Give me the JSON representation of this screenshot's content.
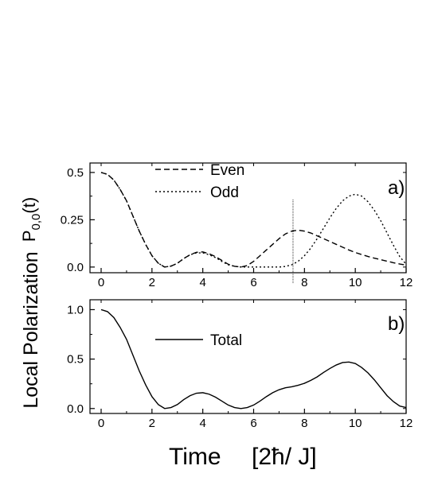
{
  "chart_data": [
    {
      "panel": "a",
      "type": "line",
      "panel_label": "a)",
      "ylabel_main": "P",
      "ylabel_sub": "0,0",
      "ylabel_arg": "(t)",
      "xlim": [
        0,
        12
      ],
      "ylim": [
        -0.03,
        0.55
      ],
      "x_ticks": [
        0,
        2,
        4,
        6,
        8,
        10,
        12
      ],
      "x_tick_labels": [
        "0",
        "2",
        "4",
        "6",
        "8",
        "10",
        "12"
      ],
      "y_ticks": [
        0.0,
        0.25,
        0.5
      ],
      "y_tick_labels": [
        "0.0",
        "0.25",
        "0.5"
      ],
      "marker_line_x": 7.55,
      "legend": "top-left",
      "series": [
        {
          "name": "Even",
          "style": "dashed",
          "x": [
            0,
            0.25,
            0.5,
            0.75,
            1,
            1.25,
            1.5,
            1.75,
            2,
            2.25,
            2.5,
            2.75,
            3,
            3.25,
            3.5,
            3.75,
            4,
            4.25,
            4.5,
            4.75,
            5,
            5.25,
            5.5,
            5.75,
            6,
            6.25,
            6.5,
            6.75,
            7,
            7.25,
            7.5,
            7.75,
            8,
            8.25,
            8.5,
            8.75,
            9,
            9.25,
            9.5,
            9.75,
            10,
            10.25,
            10.5,
            10.75,
            11,
            11.25,
            11.5,
            11.75,
            12
          ],
          "y": [
            0.5,
            0.49,
            0.46,
            0.41,
            0.35,
            0.27,
            0.19,
            0.12,
            0.06,
            0.02,
            0.0,
            0.005,
            0.02,
            0.045,
            0.065,
            0.078,
            0.08,
            0.07,
            0.055,
            0.035,
            0.015,
            0.004,
            0.0,
            0.008,
            0.03,
            0.06,
            0.09,
            0.12,
            0.15,
            0.175,
            0.19,
            0.195,
            0.19,
            0.18,
            0.165,
            0.15,
            0.135,
            0.12,
            0.105,
            0.09,
            0.077,
            0.066,
            0.056,
            0.047,
            0.039,
            0.031,
            0.023,
            0.016,
            0.01
          ]
        },
        {
          "name": "Odd",
          "style": "dotted",
          "x": [
            0,
            0.25,
            0.5,
            0.75,
            1,
            1.25,
            1.5,
            1.75,
            2,
            2.25,
            2.5,
            2.75,
            3,
            3.25,
            3.5,
            3.75,
            4,
            4.25,
            4.5,
            4.75,
            5,
            5.25,
            5.5,
            5.75,
            6,
            6.25,
            6.5,
            6.75,
            7,
            7.25,
            7.5,
            7.75,
            8,
            8.25,
            8.5,
            8.75,
            9,
            9.25,
            9.5,
            9.75,
            10,
            10.25,
            10.5,
            10.75,
            11,
            11.25,
            11.5,
            11.75,
            12
          ],
          "y": [
            0.5,
            0.49,
            0.46,
            0.41,
            0.35,
            0.27,
            0.19,
            0.12,
            0.06,
            0.02,
            0.0,
            0.005,
            0.02,
            0.045,
            0.065,
            0.075,
            0.075,
            0.065,
            0.05,
            0.03,
            0.012,
            0.004,
            0.0,
            0.0,
            0.0,
            0.0,
            0.0,
            0.0,
            0.0,
            0.003,
            0.012,
            0.03,
            0.06,
            0.1,
            0.15,
            0.205,
            0.26,
            0.31,
            0.35,
            0.375,
            0.385,
            0.375,
            0.345,
            0.3,
            0.245,
            0.18,
            0.115,
            0.055,
            0.015
          ]
        }
      ]
    },
    {
      "panel": "b",
      "type": "line",
      "panel_label": "b)",
      "xlim": [
        0,
        12
      ],
      "ylim": [
        -0.05,
        1.1
      ],
      "x_ticks": [
        0,
        2,
        4,
        6,
        8,
        10,
        12
      ],
      "x_tick_labels": [
        "0",
        "2",
        "4",
        "6",
        "8",
        "10",
        "12"
      ],
      "y_ticks": [
        0.0,
        0.5,
        1.0
      ],
      "y_tick_labels": [
        "0.0",
        "0.5",
        "1.0"
      ],
      "legend": "top-left",
      "series": [
        {
          "name": "Total",
          "style": "solid",
          "x": [
            0,
            0.25,
            0.5,
            0.75,
            1,
            1.25,
            1.5,
            1.75,
            2,
            2.25,
            2.5,
            2.75,
            3,
            3.25,
            3.5,
            3.75,
            4,
            4.25,
            4.5,
            4.75,
            5,
            5.25,
            5.5,
            5.75,
            6,
            6.25,
            6.5,
            6.75,
            7,
            7.25,
            7.5,
            7.75,
            8,
            8.25,
            8.5,
            8.75,
            9,
            9.25,
            9.5,
            9.75,
            10,
            10.25,
            10.5,
            10.75,
            11,
            11.25,
            11.5,
            11.75,
            12
          ],
          "y": [
            1.0,
            0.98,
            0.92,
            0.82,
            0.7,
            0.54,
            0.38,
            0.24,
            0.12,
            0.04,
            0.0,
            0.01,
            0.04,
            0.09,
            0.13,
            0.155,
            0.16,
            0.145,
            0.115,
            0.075,
            0.035,
            0.01,
            0.0,
            0.01,
            0.035,
            0.075,
            0.12,
            0.16,
            0.19,
            0.21,
            0.22,
            0.235,
            0.255,
            0.285,
            0.32,
            0.365,
            0.405,
            0.44,
            0.465,
            0.47,
            0.455,
            0.415,
            0.36,
            0.29,
            0.21,
            0.13,
            0.07,
            0.025,
            0.01
          ]
        }
      ]
    }
  ],
  "shared": {
    "ylabel": "Local Polarization",
    "xlabel": "Time",
    "xlabel_unit": "[2ħ/ J]"
  }
}
